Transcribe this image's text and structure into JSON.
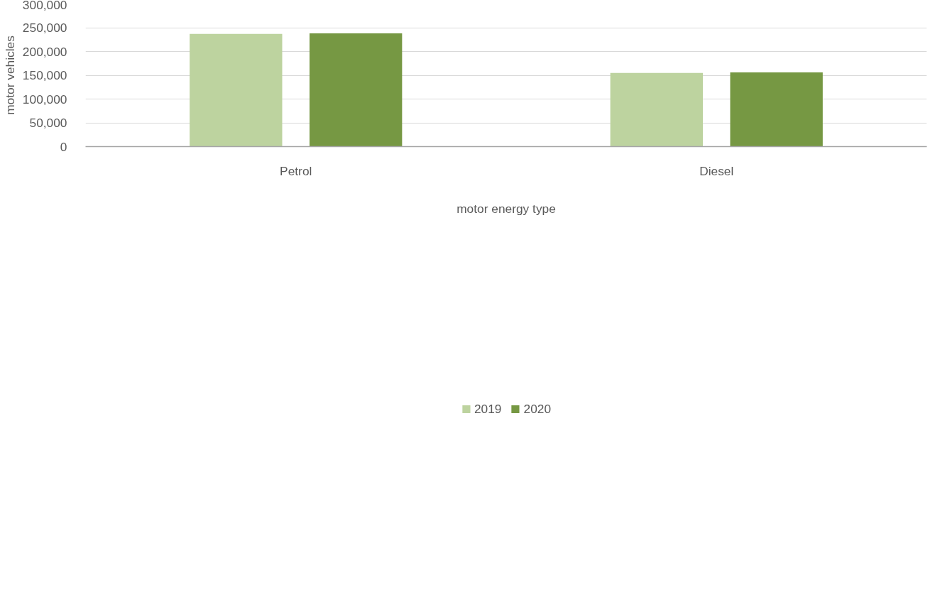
{
  "chart_data": {
    "type": "bar",
    "xlabel": "motor energy type",
    "ylabel": "motor vehicles",
    "categories": [
      "Petrol",
      "Diesel"
    ],
    "series": [
      {
        "name": "2019",
        "color": "#bdd39f",
        "values": [
          237000,
          155000
        ]
      },
      {
        "name": "2020",
        "color": "#769843",
        "values": [
          238000,
          156000
        ]
      }
    ],
    "ylim": [
      0,
      300000
    ],
    "yticks": [
      {
        "value": 0,
        "label": "0"
      },
      {
        "value": 50000,
        "label": "50,000"
      },
      {
        "value": 100000,
        "label": "100,000"
      },
      {
        "value": 150000,
        "label": "150,000"
      },
      {
        "value": 200000,
        "label": "200,000"
      },
      {
        "value": 250000,
        "label": "250,000"
      },
      {
        "value": 300000,
        "label": "300,000"
      }
    ],
    "grid": "y",
    "legend": "bottom"
  }
}
